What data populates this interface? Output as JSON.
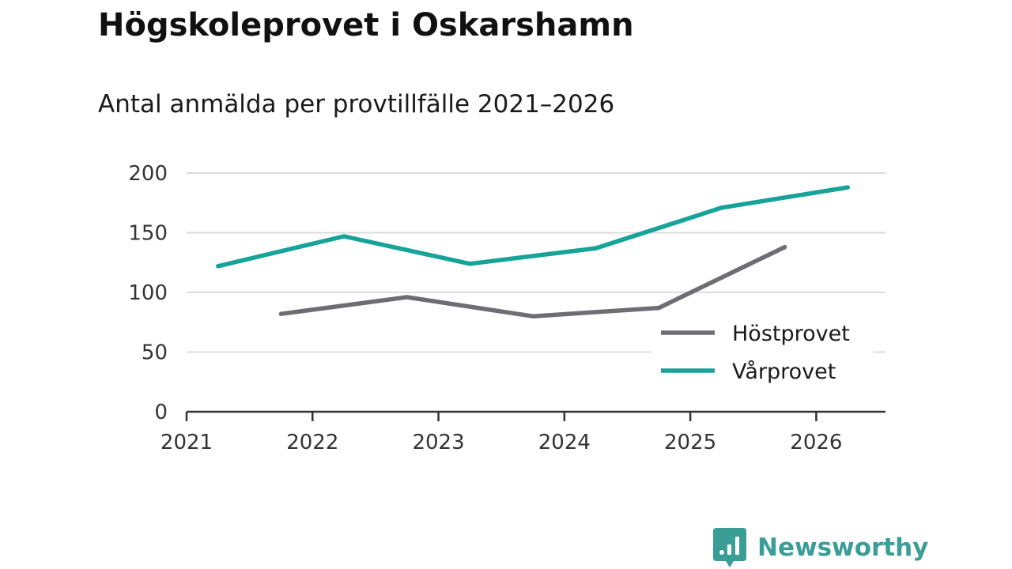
{
  "chart_data": {
    "type": "line",
    "title": "Högskoleprovet i Oskarshamn",
    "subtitle": "Antal anmälda per provtillfälle 2021–2026",
    "xlabel": "",
    "ylabel": "",
    "x_ticks": [
      "2021",
      "2022",
      "2023",
      "2024",
      "2025",
      "2026"
    ],
    "y_ticks": [
      "0",
      "50",
      "100",
      "150",
      "200"
    ],
    "xlim": [
      2021,
      2026.55
    ],
    "ylim": [
      0,
      200
    ],
    "grid": true,
    "legend_position": "bottom-right",
    "series": [
      {
        "name": "Höstprovet",
        "color": "#6e6d74",
        "x": [
          2021.75,
          2022.75,
          2023.75,
          2024.75,
          2025.75
        ],
        "values": [
          82,
          96,
          80,
          87,
          138
        ]
      },
      {
        "name": "Vårprovet",
        "color": "#16a399",
        "x": [
          2021.25,
          2022.25,
          2023.25,
          2024.25,
          2025.25,
          2026.25
        ],
        "values": [
          122,
          147,
          124,
          137,
          171,
          188
        ]
      }
    ]
  },
  "brand": {
    "name": "Newsworthy",
    "color": "#3a9e96",
    "logo_icon": "newsworthy-chart-icon"
  }
}
